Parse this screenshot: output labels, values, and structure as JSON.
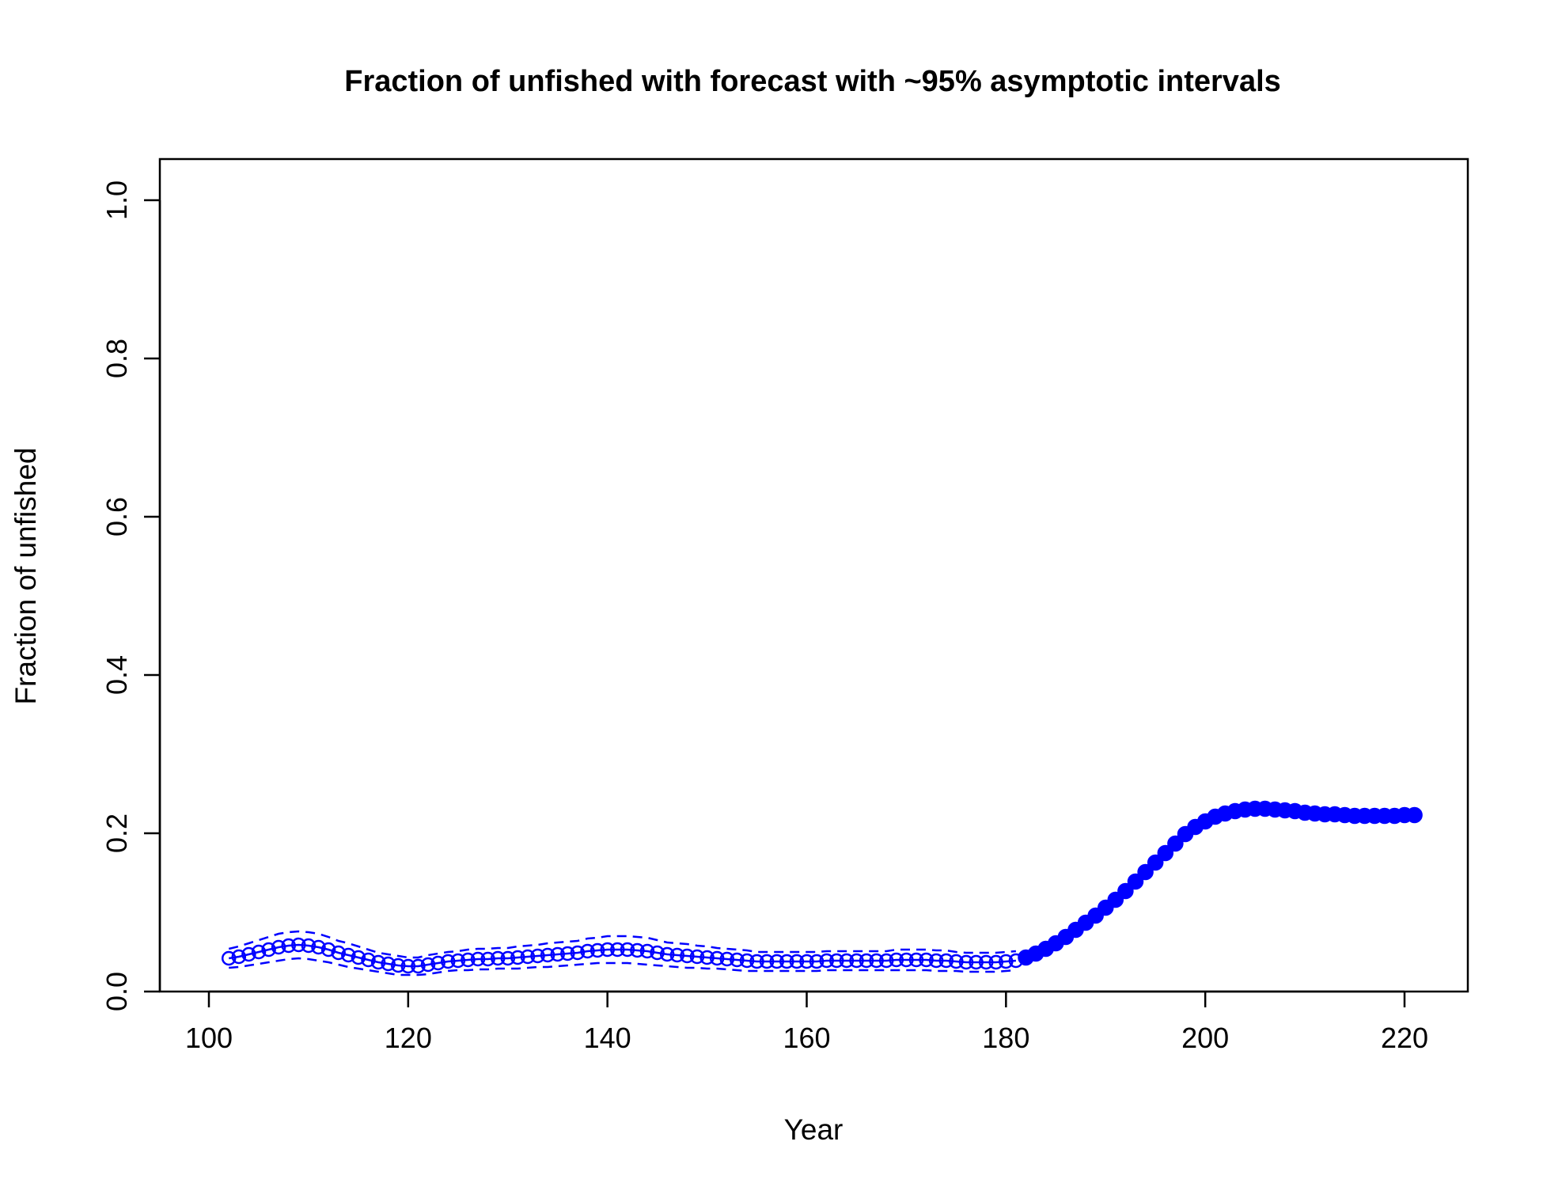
{
  "chart_data": {
    "type": "line",
    "title": "Fraction of unfished with forecast with ~95% asymptotic intervals",
    "xlabel": "Year",
    "ylabel": "Fraction of unfished",
    "xlim": [
      95,
      225
    ],
    "ylim": [
      0.0,
      1.05
    ],
    "xticks": [
      100,
      120,
      140,
      160,
      180,
      200,
      220
    ],
    "xtick_labels": [
      "100",
      "120",
      "140",
      "160",
      "180",
      "200",
      "220"
    ],
    "yticks": [
      0.0,
      0.2,
      0.4,
      0.6,
      0.8,
      1.0
    ],
    "ytick_labels": [
      "0.0",
      "0.2",
      "0.4",
      "0.6",
      "0.8",
      "1.0"
    ],
    "grid": false,
    "colors": {
      "series": "#0000ff",
      "axes": "#000000"
    },
    "series": [
      {
        "style": "open-circles-with-line",
        "x": [
          102,
          103,
          104,
          105,
          106,
          107,
          108,
          109,
          110,
          111,
          112,
          113,
          114,
          115,
          116,
          117,
          118,
          119,
          120,
          121,
          122,
          123,
          124,
          125,
          126,
          127,
          128,
          129,
          130,
          131,
          132,
          133,
          134,
          135,
          136,
          137,
          138,
          139,
          140,
          141,
          142,
          143,
          144,
          145,
          146,
          147,
          148,
          149,
          150,
          151,
          152,
          153,
          154,
          155,
          156,
          157,
          158,
          159,
          160,
          161,
          162,
          163,
          164,
          165,
          166,
          167,
          168,
          169,
          170,
          171,
          172,
          173,
          174,
          175,
          176,
          177,
          178,
          179,
          180,
          181
        ],
        "y": [
          0.042,
          0.044,
          0.047,
          0.05,
          0.053,
          0.056,
          0.058,
          0.059,
          0.058,
          0.056,
          0.053,
          0.049,
          0.046,
          0.043,
          0.04,
          0.037,
          0.035,
          0.033,
          0.032,
          0.032,
          0.034,
          0.036,
          0.038,
          0.039,
          0.04,
          0.041,
          0.041,
          0.042,
          0.042,
          0.043,
          0.044,
          0.045,
          0.046,
          0.047,
          0.048,
          0.049,
          0.051,
          0.052,
          0.053,
          0.053,
          0.053,
          0.052,
          0.051,
          0.049,
          0.047,
          0.046,
          0.045,
          0.044,
          0.043,
          0.042,
          0.041,
          0.04,
          0.039,
          0.038,
          0.038,
          0.038,
          0.038,
          0.038,
          0.038,
          0.038,
          0.039,
          0.039,
          0.039,
          0.039,
          0.039,
          0.039,
          0.039,
          0.04,
          0.04,
          0.04,
          0.04,
          0.039,
          0.039,
          0.038,
          0.037,
          0.037,
          0.037,
          0.037,
          0.038,
          0.039
        ],
        "lower": [
          0.03,
          0.031,
          0.033,
          0.035,
          0.037,
          0.039,
          0.041,
          0.042,
          0.041,
          0.039,
          0.037,
          0.034,
          0.031,
          0.029,
          0.027,
          0.025,
          0.023,
          0.021,
          0.021,
          0.021,
          0.022,
          0.024,
          0.026,
          0.027,
          0.027,
          0.028,
          0.028,
          0.029,
          0.029,
          0.029,
          0.03,
          0.031,
          0.031,
          0.032,
          0.033,
          0.034,
          0.035,
          0.036,
          0.036,
          0.036,
          0.036,
          0.035,
          0.034,
          0.033,
          0.032,
          0.031,
          0.03,
          0.03,
          0.029,
          0.029,
          0.028,
          0.027,
          0.026,
          0.026,
          0.026,
          0.026,
          0.026,
          0.026,
          0.026,
          0.026,
          0.027,
          0.027,
          0.027,
          0.027,
          0.027,
          0.027,
          0.027,
          0.027,
          0.027,
          0.027,
          0.027,
          0.026,
          0.026,
          0.026,
          0.025,
          0.025,
          0.025,
          0.025,
          0.026,
          0.027
        ],
        "upper": [
          0.054,
          0.057,
          0.061,
          0.065,
          0.069,
          0.073,
          0.075,
          0.076,
          0.075,
          0.073,
          0.069,
          0.064,
          0.061,
          0.057,
          0.053,
          0.049,
          0.047,
          0.045,
          0.043,
          0.043,
          0.046,
          0.048,
          0.05,
          0.051,
          0.053,
          0.054,
          0.054,
          0.055,
          0.055,
          0.057,
          0.058,
          0.059,
          0.061,
          0.062,
          0.063,
          0.064,
          0.067,
          0.068,
          0.07,
          0.07,
          0.07,
          0.069,
          0.068,
          0.065,
          0.062,
          0.061,
          0.06,
          0.058,
          0.057,
          0.055,
          0.054,
          0.053,
          0.052,
          0.05,
          0.05,
          0.05,
          0.05,
          0.05,
          0.05,
          0.05,
          0.051,
          0.051,
          0.051,
          0.051,
          0.051,
          0.051,
          0.051,
          0.053,
          0.053,
          0.053,
          0.053,
          0.052,
          0.052,
          0.05,
          0.049,
          0.049,
          0.049,
          0.049,
          0.05,
          0.051
        ]
      },
      {
        "style": "filled-circles-with-line",
        "x": [
          182,
          183,
          184,
          185,
          186,
          187,
          188,
          189,
          190,
          191,
          192,
          193,
          194,
          195,
          196,
          197,
          198,
          199,
          200,
          201,
          202,
          203,
          204,
          205,
          206,
          207,
          208,
          209,
          210,
          211,
          212,
          213,
          214,
          215,
          216,
          217,
          218,
          219,
          220,
          221
        ],
        "y": [
          0.043,
          0.048,
          0.054,
          0.061,
          0.069,
          0.078,
          0.087,
          0.096,
          0.106,
          0.116,
          0.127,
          0.139,
          0.151,
          0.163,
          0.175,
          0.187,
          0.199,
          0.208,
          0.215,
          0.221,
          0.225,
          0.228,
          0.23,
          0.231,
          0.231,
          0.23,
          0.229,
          0.228,
          0.226,
          0.225,
          0.224,
          0.224,
          0.223,
          0.222,
          0.222,
          0.222,
          0.222,
          0.222,
          0.223,
          0.223
        ]
      }
    ]
  }
}
